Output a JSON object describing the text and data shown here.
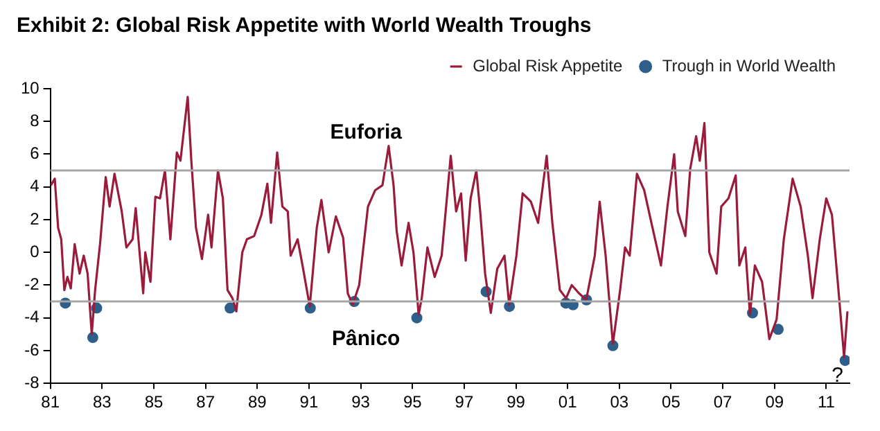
{
  "chart_data": {
    "type": "line",
    "title": "Exhibit 2: Global Risk Appetite with World Wealth Troughs",
    "xlim": [
      1981,
      2011.9
    ],
    "xticks": [
      {
        "value": 1981,
        "label": "81"
      },
      {
        "value": 1983,
        "label": "83"
      },
      {
        "value": 1985,
        "label": "85"
      },
      {
        "value": 1987,
        "label": "87"
      },
      {
        "value": 1989,
        "label": "89"
      },
      {
        "value": 1991,
        "label": "91"
      },
      {
        "value": 1993,
        "label": "93"
      },
      {
        "value": 1995,
        "label": "95"
      },
      {
        "value": 1997,
        "label": "97"
      },
      {
        "value": 1999,
        "label": "99"
      },
      {
        "value": 2001,
        "label": "01"
      },
      {
        "value": 2003,
        "label": "03"
      },
      {
        "value": 2005,
        "label": "05"
      },
      {
        "value": 2007,
        "label": "07"
      },
      {
        "value": 2009,
        "label": "09"
      },
      {
        "value": 2011,
        "label": "11"
      }
    ],
    "ylim": [
      -8,
      10
    ],
    "yticks": [
      -8,
      -6,
      -4,
      -2,
      0,
      2,
      4,
      6,
      8,
      10
    ],
    "grid": false,
    "legend": "top right",
    "line_style": "solid",
    "ref_lines": [
      {
        "axis": "y",
        "value": 5,
        "color": "#a6a6a6"
      },
      {
        "axis": "y",
        "value": -3,
        "color": "#a6a6a6"
      }
    ],
    "annotations": [
      "Euforia",
      "Pânico",
      "?"
    ],
    "series": [
      {
        "name": "Global Risk Appetite",
        "type": "line",
        "marker": "none",
        "color": "#9b1b3a",
        "x": [
          1981.02,
          1981.17,
          1981.3,
          1981.42,
          1981.54,
          1981.66,
          1981.79,
          1981.94,
          1982.13,
          1982.29,
          1982.44,
          1982.6,
          1982.73,
          1982.92,
          1983.14,
          1983.29,
          1983.48,
          1983.76,
          1983.94,
          1984.18,
          1984.3,
          1984.46,
          1984.59,
          1984.67,
          1984.87,
          1985.06,
          1985.24,
          1985.43,
          1985.64,
          1985.89,
          1986.03,
          1986.31,
          1986.45,
          1986.63,
          1986.86,
          1987.1,
          1987.23,
          1987.48,
          1987.67,
          1987.85,
          1988.04,
          1988.19,
          1988.42,
          1988.6,
          1988.88,
          1989.16,
          1989.39,
          1989.53,
          1989.77,
          1989.97,
          1990.18,
          1990.29,
          1990.56,
          1990.75,
          1991.03,
          1991.3,
          1991.48,
          1991.76,
          1992.04,
          1992.32,
          1992.5,
          1992.69,
          1992.94,
          1993.28,
          1993.56,
          1993.84,
          1994.08,
          1994.27,
          1994.39,
          1994.58,
          1994.85,
          1995.04,
          1995.24,
          1995.36,
          1995.58,
          1995.86,
          1996.13,
          1996.48,
          1996.69,
          1996.88,
          1997.06,
          1997.25,
          1997.47,
          1997.62,
          1997.81,
          1998.03,
          1998.28,
          1998.56,
          1998.74,
          1999.02,
          1999.26,
          1999.58,
          1999.86,
          2000.19,
          2000.41,
          2000.7,
          2000.94,
          2001.16,
          2001.44,
          2001.72,
          2002.05,
          2002.24,
          2002.47,
          2002.75,
          2003.03,
          2003.22,
          2003.4,
          2003.68,
          2003.96,
          2004.24,
          2004.61,
          2004.86,
          2005.12,
          2005.26,
          2005.55,
          2005.74,
          2005.97,
          2006.11,
          2006.29,
          2006.48,
          2006.76,
          2006.94,
          2007.22,
          2007.5,
          2007.64,
          2007.87,
          2008.05,
          2008.24,
          2008.52,
          2008.8,
          2009.08,
          2009.36,
          2009.7,
          2010.01,
          2010.29,
          2010.47,
          2010.75,
          2011.0,
          2011.22,
          2011.5,
          2011.69,
          2011.82
        ],
        "values": [
          4.1,
          4.5,
          1.5,
          0.8,
          -2.3,
          -1.5,
          -2.2,
          0.5,
          -1.3,
          -0.2,
          -1.3,
          -5.0,
          -2.3,
          0.5,
          4.6,
          2.8,
          4.8,
          2.5,
          0.3,
          0.8,
          2.7,
          -0.2,
          -2.5,
          0,
          -1.8,
          3.4,
          3.3,
          5.0,
          0.8,
          6.1,
          5.6,
          9.5,
          5.6,
          1.5,
          -0.4,
          2.3,
          0.3,
          5.0,
          3.3,
          -2.3,
          -2.8,
          -3.6,
          0,
          0.8,
          1.0,
          2.3,
          4.2,
          1.8,
          6.1,
          2.8,
          2.5,
          -0.2,
          0.8,
          -0.8,
          -3.3,
          1.5,
          3.2,
          0,
          2.2,
          0.9,
          -2.5,
          -3.2,
          -2.0,
          2.8,
          3.8,
          4.1,
          6.5,
          4.1,
          1.3,
          -0.8,
          1.8,
          0,
          -3.8,
          -2.8,
          0.3,
          -1.5,
          -0.2,
          5.9,
          2.5,
          3.6,
          -0.5,
          3.3,
          5.0,
          2.5,
          -1.3,
          -3.7,
          -1.0,
          -0.2,
          -3.2,
          -0.2,
          3.6,
          3.1,
          1.8,
          5.9,
          1.8,
          -2.3,
          -2.8,
          -2.0,
          -2.5,
          -2.9,
          -0.2,
          3.1,
          -0.2,
          -5.6,
          -2.3,
          0.3,
          -0.2,
          4.8,
          3.8,
          1.8,
          -0.8,
          2.8,
          6.0,
          2.5,
          1.0,
          5.1,
          7.1,
          5.6,
          7.9,
          0,
          -1.3,
          2.8,
          3.3,
          4.7,
          -0.8,
          0.3,
          -3.8,
          -0.8,
          -1.8,
          -5.3,
          -4.1,
          0.8,
          4.5,
          2.8,
          -0.2,
          -2.8,
          0.8,
          3.3,
          2.3,
          -2.8,
          -6.4,
          -3.6
        ]
      },
      {
        "name": "Trough in World Wealth",
        "type": "scatter",
        "marker": "circle",
        "color": "#2e5f8a",
        "x": [
          1981.58,
          1982.64,
          1982.79,
          1987.95,
          1991.05,
          1992.75,
          1995.17,
          1997.85,
          1998.75,
          2000.93,
          2001.21,
          2001.73,
          2002.75,
          2008.15,
          2009.14,
          2011.73
        ],
        "values": [
          -3.1,
          -5.2,
          -3.4,
          -3.4,
          -3.4,
          -3.0,
          -4.0,
          -2.4,
          -3.3,
          -3.1,
          -3.2,
          -2.9,
          -5.7,
          -3.7,
          -4.7,
          -6.6
        ]
      }
    ]
  }
}
